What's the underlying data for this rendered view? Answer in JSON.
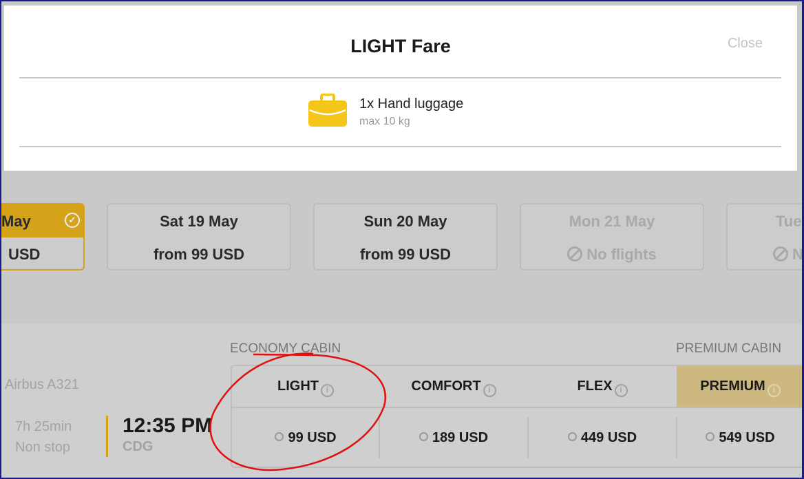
{
  "modal": {
    "title": "LIGHT Fare",
    "close_label": "Close",
    "luggage": {
      "icon": "briefcase-icon",
      "name": "1x Hand luggage",
      "detail": "max 10 kg",
      "icon_color": "#f5c518"
    }
  },
  "dates": [
    {
      "day": "May",
      "price": "USD",
      "state": "selected"
    },
    {
      "day": "Sat 19 May",
      "price": "from 99 USD",
      "state": "available"
    },
    {
      "day": "Sun 20 May",
      "price": "from 99 USD",
      "state": "available"
    },
    {
      "day": "Mon 21 May",
      "price": "No flights",
      "state": "unavailable"
    },
    {
      "day": "Tue",
      "price": "N",
      "state": "unavailable"
    }
  ],
  "flight": {
    "aircraft": "Airbus A321",
    "duration": "7h 25min",
    "stops": "Non stop",
    "time": "12:35 PM",
    "airport": "CDG"
  },
  "cabins": {
    "economy": "ECONOMY CABIN",
    "premium": "PREMIUM CABIN"
  },
  "fares": [
    {
      "name": "LIGHT",
      "price": "99 USD"
    },
    {
      "name": "COMFORT",
      "price": "189 USD"
    },
    {
      "name": "FLEX",
      "price": "449 USD"
    },
    {
      "name": "PREMIUM",
      "price": "549 USD"
    }
  ],
  "colors": {
    "accent": "#d4a31a",
    "premium_header": "#cdb97f",
    "annotation": "#e01010"
  }
}
